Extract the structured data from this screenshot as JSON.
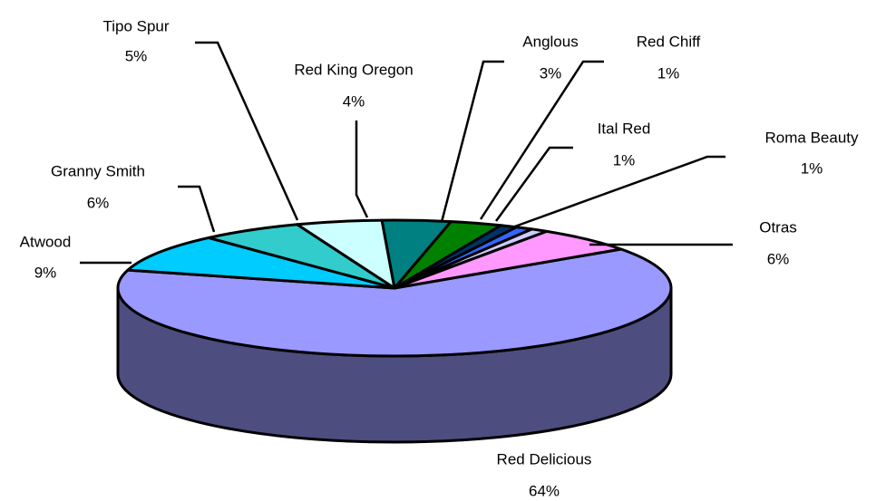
{
  "chart_data": {
    "type": "pie",
    "categories": [
      "Red Delicious",
      "Atwood",
      "Granny Smith",
      "Tipo Spur",
      "Red King Oregon",
      "Anglous",
      "Red Chiff",
      "Ital Red",
      "Roma Beauty",
      "Otras"
    ],
    "values": [
      64,
      9,
      6,
      5,
      4,
      3,
      1,
      1,
      1,
      6
    ],
    "value_labels": [
      "64%",
      "9%",
      "6%",
      "5%",
      "4%",
      "3%",
      "1%",
      "1%",
      "1%",
      "6%"
    ],
    "colors": [
      "#9999ff",
      "#00ccff",
      "#33cccc",
      "#ccffff",
      "#008080",
      "#008000",
      "#003366",
      "#3366ff",
      "#ccccff",
      "#ff99ff"
    ],
    "three_d": true
  }
}
